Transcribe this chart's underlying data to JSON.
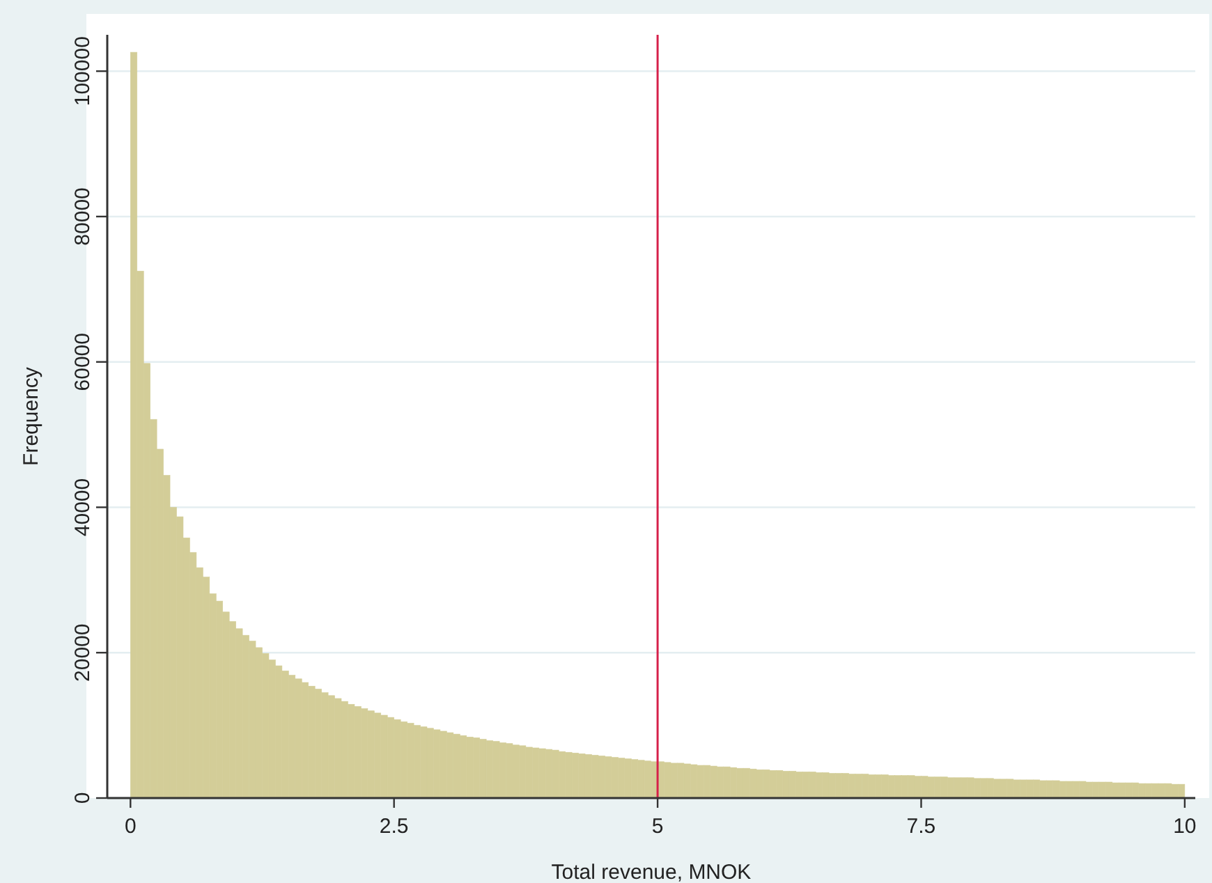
{
  "chart_data": {
    "type": "histogram",
    "xlabel": "Total revenue, MNOK",
    "ylabel": "Frequency",
    "bins": [
      0,
      0.0625,
      0.125,
      0.1875,
      0.25,
      0.3125,
      0.375,
      0.4375,
      0.5,
      0.5625,
      0.625,
      0.6875,
      0.75,
      0.8125,
      0.875,
      0.9375,
      1,
      1.0625,
      1.125,
      1.1875,
      1.25,
      1.3125,
      1.375,
      1.4375,
      1.5,
      1.5625,
      1.625,
      1.6875,
      1.75,
      1.8125,
      1.875,
      1.9375,
      2,
      2.0625,
      2.125,
      2.1875,
      2.25,
      2.3125,
      2.375,
      2.4375,
      2.5,
      2.5625,
      2.625,
      2.6875,
      2.75,
      2.8125,
      2.875,
      2.9375,
      3,
      3.0625,
      3.125,
      3.1875,
      3.25,
      3.3125,
      3.375,
      3.4375,
      3.5,
      3.5625,
      3.625,
      3.6875,
      3.75,
      3.8125,
      3.875,
      3.9375,
      4,
      4.0625,
      4.125,
      4.1875,
      4.25,
      4.3125,
      4.375,
      4.4375,
      4.5,
      4.5625,
      4.625,
      4.6875,
      4.75,
      4.8125,
      4.875,
      4.9375,
      5,
      5.0625,
      5.125,
      5.1875,
      5.25,
      5.3125,
      5.375,
      5.4375,
      5.5,
      5.5625,
      5.625,
      5.6875,
      5.75,
      5.8125,
      5.875,
      5.9375,
      6,
      6.0625,
      6.125,
      6.1875,
      6.25,
      6.3125,
      6.375,
      6.4375,
      6.5,
      6.5625,
      6.625,
      6.6875,
      6.75,
      6.8125,
      6.875,
      6.9375,
      7,
      7.0625,
      7.125,
      7.1875,
      7.25,
      7.3125,
      7.375,
      7.4375,
      7.5,
      7.5625,
      7.625,
      7.6875,
      7.75,
      7.8125,
      7.875,
      7.9375,
      8,
      8.0625,
      8.125,
      8.1875,
      8.25,
      8.3125,
      8.375,
      8.4375,
      8.5,
      8.5625,
      8.625,
      8.6875,
      8.75,
      8.8125,
      8.875,
      8.9375,
      9,
      9.0625,
      9.125,
      9.1875,
      9.25,
      9.3125,
      9.375,
      9.4375,
      9.5,
      9.5625,
      9.625,
      9.6875,
      9.75,
      9.8125,
      9.875,
      9.9375,
      10
    ],
    "values": [
      102600,
      72500,
      59800,
      52100,
      48000,
      44400,
      40000,
      38700,
      35800,
      33800,
      31700,
      30400,
      28100,
      27100,
      25600,
      24300,
      23300,
      22400,
      21600,
      20700,
      19900,
      19000,
      18200,
      17500,
      16900,
      16400,
      15900,
      15400,
      15000,
      14500,
      14100,
      13700,
      13300,
      12900,
      12600,
      12300,
      12000,
      11700,
      11400,
      11100,
      10800,
      10500,
      10300,
      10000,
      9800,
      9600,
      9400,
      9200,
      9000,
      8800,
      8600,
      8400,
      8300,
      8100,
      7900,
      7800,
      7600,
      7500,
      7300,
      7200,
      7000,
      6900,
      6800,
      6700,
      6600,
      6400,
      6300,
      6200,
      6100,
      6000,
      5900,
      5800,
      5700,
      5600,
      5500,
      5400,
      5300,
      5200,
      5100,
      5000,
      5000,
      4900,
      4800,
      4800,
      4700,
      4600,
      4500,
      4500,
      4400,
      4300,
      4300,
      4200,
      4100,
      4100,
      4000,
      3900,
      3900,
      3800,
      3800,
      3700,
      3700,
      3600,
      3600,
      3600,
      3500,
      3500,
      3400,
      3400,
      3400,
      3300,
      3300,
      3300,
      3200,
      3200,
      3200,
      3100,
      3100,
      3100,
      3100,
      3000,
      3000,
      2900,
      2900,
      2900,
      2800,
      2800,
      2800,
      2800,
      2700,
      2700,
      2700,
      2600,
      2600,
      2600,
      2500,
      2500,
      2500,
      2500,
      2400,
      2400,
      2400,
      2300,
      2300,
      2300,
      2300,
      2200,
      2200,
      2200,
      2200,
      2100,
      2100,
      2100,
      2100,
      2000,
      2000,
      2000,
      2000,
      2000,
      1900,
      1900
    ],
    "color": "#d3cd98",
    "xlim": [
      -0.22,
      10.1
    ],
    "ylim": [
      0,
      105000
    ],
    "xticks": [
      0,
      2.5,
      5,
      7.5,
      10
    ],
    "yticks": [
      0,
      20000,
      40000,
      60000,
      80000,
      100000
    ],
    "grid": "y",
    "ref_lines": [
      {
        "axis": "x",
        "value": 5,
        "color": "#d6204a"
      }
    ]
  }
}
